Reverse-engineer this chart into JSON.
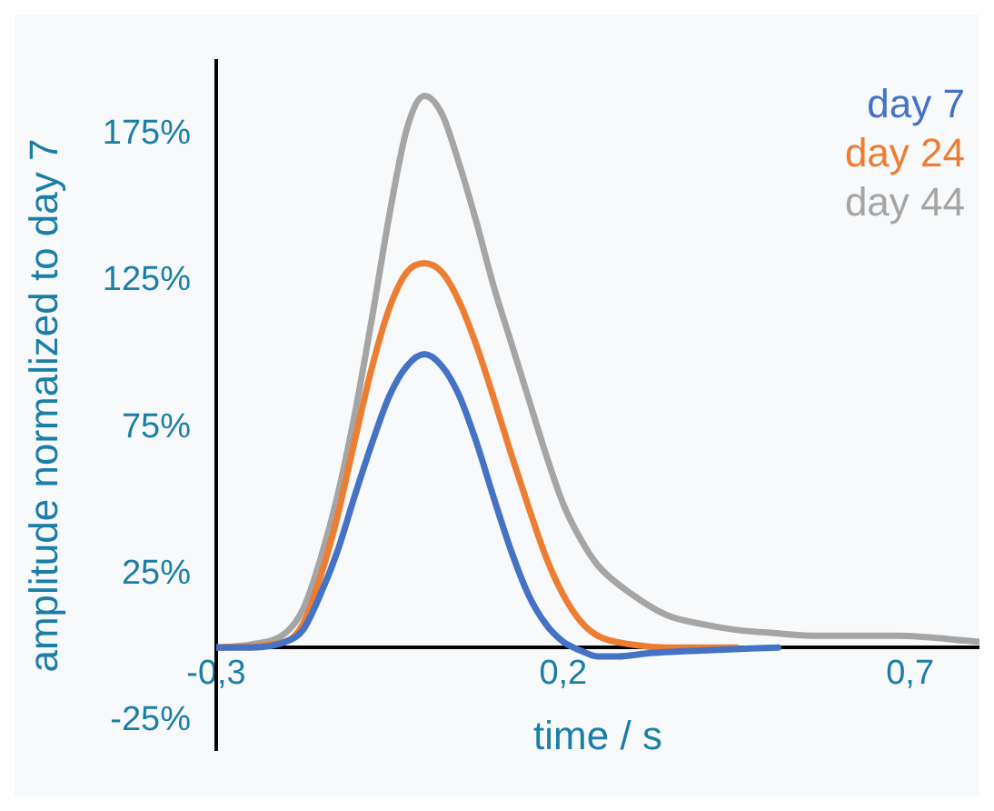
{
  "chart_data": {
    "type": "line",
    "xlabel": "time / s",
    "ylabel": "amplitude normalized to day 7",
    "xlim": [
      -0.3,
      0.8
    ],
    "xticks": [
      {
        "value": -0.3,
        "label": "-0,3"
      },
      {
        "value": 0.2,
        "label": "0,2"
      },
      {
        "value": 0.7,
        "label": "0,7"
      }
    ],
    "ylim": [
      -35,
      200
    ],
    "yticks": [
      {
        "value": -25,
        "label": "-25%"
      },
      {
        "value": 25,
        "label": "25%"
      },
      {
        "value": 75,
        "label": "75%"
      },
      {
        "value": 125,
        "label": "125%"
      },
      {
        "value": 175,
        "label": "175%"
      }
    ],
    "grid": false,
    "legend": "top right",
    "marker": "none",
    "line_style": "solid",
    "series": [
      {
        "name": "day 7",
        "color": "#4472c4",
        "x": [
          -0.3,
          -0.25,
          -0.2,
          -0.175,
          -0.15,
          -0.125,
          -0.1,
          -0.075,
          -0.05,
          -0.025,
          0,
          0.025,
          0.05,
          0.075,
          0.1,
          0.125,
          0.15,
          0.175,
          0.2,
          0.225,
          0.25,
          0.28,
          0.32,
          0.4,
          0.51
        ],
        "values": [
          0,
          0,
          2,
          6,
          18,
          33,
          52,
          70,
          86,
          96,
          100,
          96,
          86,
          70,
          51,
          33,
          18,
          8,
          2,
          -1,
          -3,
          -3,
          -2,
          -1,
          0
        ]
      },
      {
        "name": "day 24",
        "color": "#ed7d31",
        "x": [
          -0.3,
          -0.2,
          -0.175,
          -0.15,
          -0.125,
          -0.1,
          -0.075,
          -0.05,
          -0.025,
          0,
          0.025,
          0.05,
          0.075,
          0.1,
          0.125,
          0.15,
          0.175,
          0.2,
          0.225,
          0.25,
          0.3,
          0.35,
          0.45
        ],
        "values": [
          0,
          2,
          8,
          24,
          45,
          71,
          96,
          116,
          128,
          131,
          128,
          118,
          103,
          85,
          66,
          48,
          31,
          18,
          9,
          4,
          1,
          0,
          0
        ]
      },
      {
        "name": "day 44",
        "color": "#a5a5a5",
        "x": [
          -0.3,
          -0.25,
          -0.2,
          -0.175,
          -0.15,
          -0.125,
          -0.1,
          -0.075,
          -0.05,
          -0.025,
          0,
          0.025,
          0.05,
          0.075,
          0.1,
          0.125,
          0.15,
          0.175,
          0.2,
          0.225,
          0.25,
          0.3,
          0.35,
          0.4,
          0.45,
          0.5,
          0.57,
          0.68,
          0.8
        ],
        "values": [
          0,
          1,
          5,
          13,
          30,
          52,
          80,
          113,
          148,
          177,
          188,
          182,
          165,
          145,
          123,
          104,
          85,
          66,
          49,
          37,
          28,
          18,
          11,
          8,
          6,
          5,
          4,
          4,
          2
        ]
      }
    ]
  }
}
